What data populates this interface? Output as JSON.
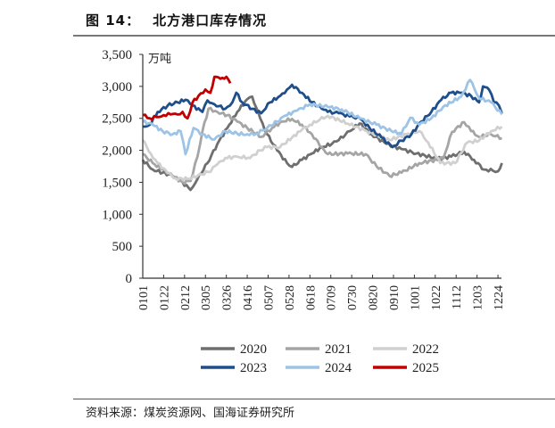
{
  "header": {
    "figure_no": "图 14：",
    "title": "北方港口库存情况"
  },
  "footer": {
    "source": "资料来源：煤炭资源网、国海证券研究所"
  },
  "chart_data": {
    "type": "line",
    "title": "北方港口库存情况",
    "ylabel": "万吨",
    "xlabel": "",
    "ylim": [
      0,
      3500
    ],
    "yticks": [
      0,
      500,
      1000,
      1500,
      2000,
      2500,
      3000,
      3500
    ],
    "ytick_labels": [
      "0",
      "500",
      "1,000",
      "1,500",
      "2,000",
      "2,500",
      "3,000",
      "3,500"
    ],
    "x_unit": "day of year (0 = 0101)",
    "xlim": [
      0,
      361
    ],
    "xticks": [
      0,
      21,
      42,
      63,
      84,
      105,
      126,
      147,
      168,
      189,
      210,
      231,
      252,
      273,
      294,
      315,
      336,
      357
    ],
    "xtick_labels": [
      "0101",
      "0122",
      "0212",
      "0305",
      "0326",
      "0416",
      "0507",
      "0528",
      "0618",
      "0709",
      "0730",
      "0820",
      "0910",
      "1001",
      "1022",
      "1112",
      "1203",
      "1224"
    ],
    "grid": false,
    "legend_position": "bottom",
    "series": [
      {
        "name": "2020",
        "color": "#6f6f6f",
        "points": [
          [
            0,
            1850
          ],
          [
            10,
            1700
          ],
          [
            20,
            1650
          ],
          [
            30,
            1600
          ],
          [
            40,
            1500
          ],
          [
            48,
            1380
          ],
          [
            55,
            1550
          ],
          [
            65,
            1800
          ],
          [
            75,
            2100
          ],
          [
            85,
            2350
          ],
          [
            95,
            2600
          ],
          [
            105,
            2800
          ],
          [
            110,
            2840
          ],
          [
            118,
            2500
          ],
          [
            125,
            2250
          ],
          [
            135,
            2000
          ],
          [
            145,
            1800
          ],
          [
            150,
            1740
          ],
          [
            160,
            1850
          ],
          [
            170,
            1950
          ],
          [
            180,
            2050
          ],
          [
            190,
            2100
          ],
          [
            197,
            2160
          ],
          [
            208,
            2300
          ],
          [
            218,
            2420
          ],
          [
            230,
            2250
          ],
          [
            245,
            2100
          ],
          [
            260,
            2020
          ],
          [
            275,
            1950
          ],
          [
            296,
            1870
          ],
          [
            310,
            1900
          ],
          [
            323,
            1980
          ],
          [
            333,
            1850
          ],
          [
            343,
            1700
          ],
          [
            352,
            1680
          ],
          [
            357,
            1670
          ],
          [
            361,
            1800
          ]
        ]
      },
      {
        "name": "2021",
        "color": "#a5a5a5",
        "points": [
          [
            0,
            1940
          ],
          [
            10,
            1800
          ],
          [
            20,
            1700
          ],
          [
            30,
            1600
          ],
          [
            40,
            1500
          ],
          [
            48,
            1520
          ],
          [
            55,
            1900
          ],
          [
            60,
            2300
          ],
          [
            66,
            2650
          ],
          [
            75,
            2600
          ],
          [
            85,
            2550
          ],
          [
            95,
            2450
          ],
          [
            105,
            2350
          ],
          [
            119,
            2210
          ],
          [
            130,
            2350
          ],
          [
            140,
            2450
          ],
          [
            150,
            2490
          ],
          [
            160,
            2400
          ],
          [
            170,
            2250
          ],
          [
            180,
            2050
          ],
          [
            186,
            1940
          ],
          [
            206,
            1950
          ],
          [
            224,
            1940
          ],
          [
            235,
            1750
          ],
          [
            248,
            1600
          ],
          [
            260,
            1650
          ],
          [
            278,
            1800
          ],
          [
            302,
            1870
          ],
          [
            311,
            2290
          ],
          [
            323,
            2440
          ],
          [
            330,
            2300
          ],
          [
            338,
            2210
          ],
          [
            350,
            2250
          ],
          [
            361,
            2190
          ]
        ]
      },
      {
        "name": "2022",
        "color": "#d0d0d0",
        "points": [
          [
            0,
            2160
          ],
          [
            8,
            1950
          ],
          [
            15,
            1800
          ],
          [
            25,
            1650
          ],
          [
            33,
            1560
          ],
          [
            45,
            1550
          ],
          [
            55,
            1600
          ],
          [
            66,
            1660
          ],
          [
            75,
            1780
          ],
          [
            83,
            1880
          ],
          [
            95,
            1900
          ],
          [
            108,
            1880
          ],
          [
            118,
            2000
          ],
          [
            125,
            2050
          ],
          [
            138,
            2050
          ],
          [
            150,
            2200
          ],
          [
            160,
            2320
          ],
          [
            168,
            2400
          ],
          [
            178,
            2480
          ],
          [
            186,
            2540
          ],
          [
            206,
            2420
          ],
          [
            225,
            2300
          ],
          [
            248,
            2160
          ],
          [
            265,
            2250
          ],
          [
            278,
            2300
          ],
          [
            287,
            2120
          ],
          [
            299,
            1800
          ],
          [
            314,
            1800
          ],
          [
            326,
            2120
          ],
          [
            338,
            2150
          ],
          [
            350,
            2300
          ],
          [
            361,
            2370
          ]
        ]
      },
      {
        "name": "2023",
        "color": "#1f4e8c",
        "points": [
          [
            0,
            2370
          ],
          [
            7,
            2400
          ],
          [
            15,
            2600
          ],
          [
            25,
            2700
          ],
          [
            35,
            2750
          ],
          [
            43,
            2790
          ],
          [
            50,
            2700
          ],
          [
            60,
            2600
          ],
          [
            65,
            2780
          ],
          [
            72,
            2720
          ],
          [
            83,
            2650
          ],
          [
            90,
            2750
          ],
          [
            94,
            2900
          ],
          [
            100,
            2750
          ],
          [
            110,
            2650
          ],
          [
            119,
            2580
          ],
          [
            128,
            2750
          ],
          [
            138,
            2850
          ],
          [
            145,
            2950
          ],
          [
            150,
            3025
          ],
          [
            160,
            2900
          ],
          [
            170,
            2750
          ],
          [
            180,
            2650
          ],
          [
            186,
            2600
          ],
          [
            197,
            2580
          ],
          [
            208,
            2530
          ],
          [
            218,
            2500
          ],
          [
            228,
            2350
          ],
          [
            240,
            2200
          ],
          [
            251,
            2050
          ],
          [
            260,
            2150
          ],
          [
            270,
            2250
          ],
          [
            280,
            2450
          ],
          [
            290,
            2600
          ],
          [
            300,
            2790
          ],
          [
            310,
            2900
          ],
          [
            320,
            2900
          ],
          [
            330,
            2850
          ],
          [
            338,
            2750
          ],
          [
            342,
            3000
          ],
          [
            348,
            2950
          ],
          [
            353,
            2750
          ],
          [
            358,
            2700
          ],
          [
            361,
            2580
          ]
        ]
      },
      {
        "name": "2024",
        "color": "#9dc3e6",
        "points": [
          [
            0,
            2450
          ],
          [
            10,
            2400
          ],
          [
            20,
            2300
          ],
          [
            30,
            2250
          ],
          [
            38,
            2300
          ],
          [
            43,
            1940
          ],
          [
            51,
            2350
          ],
          [
            60,
            2250
          ],
          [
            72,
            2170
          ],
          [
            83,
            2300
          ],
          [
            95,
            2260
          ],
          [
            105,
            2250
          ],
          [
            114,
            2260
          ],
          [
            125,
            2350
          ],
          [
            135,
            2450
          ],
          [
            143,
            2540
          ],
          [
            155,
            2620
          ],
          [
            168,
            2720
          ],
          [
            186,
            2680
          ],
          [
            200,
            2640
          ],
          [
            218,
            2500
          ],
          [
            235,
            2400
          ],
          [
            250,
            2300
          ],
          [
            260,
            2260
          ],
          [
            269,
            2510
          ],
          [
            278,
            2400
          ],
          [
            290,
            2500
          ],
          [
            302,
            2680
          ],
          [
            320,
            2840
          ],
          [
            329,
            3100
          ],
          [
            338,
            2820
          ],
          [
            350,
            2750
          ],
          [
            361,
            2560
          ]
        ]
      },
      {
        "name": "2025",
        "color": "#c00000",
        "points": [
          [
            0,
            2550
          ],
          [
            7,
            2500
          ],
          [
            14,
            2520
          ],
          [
            21,
            2550
          ],
          [
            28,
            2560
          ],
          [
            35,
            2560
          ],
          [
            40,
            2600
          ],
          [
            45,
            2500
          ],
          [
            50,
            2750
          ],
          [
            56,
            2850
          ],
          [
            63,
            2950
          ],
          [
            68,
            2900
          ],
          [
            72,
            3150
          ],
          [
            78,
            3120
          ],
          [
            84,
            3150
          ],
          [
            88,
            3050
          ]
        ]
      }
    ]
  }
}
